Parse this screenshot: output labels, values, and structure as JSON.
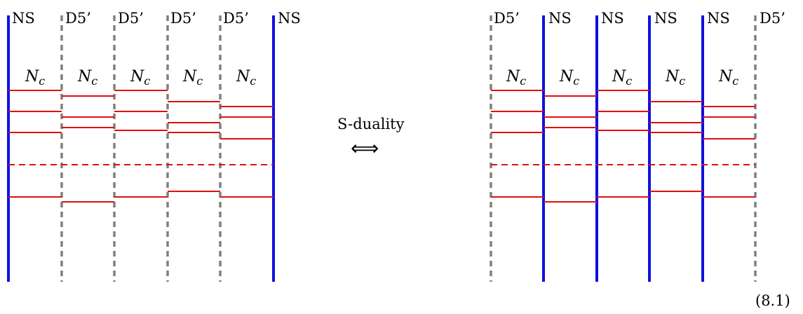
{
  "left_config": {
    "brane_labels": [
      "NS",
      "D5’",
      "D5’",
      "D5’",
      "D5’",
      "NS"
    ],
    "brane_types": [
      "NS",
      "D5",
      "D5",
      "D5",
      "D5",
      "NS"
    ],
    "interval_labels": [
      {
        "main": "N",
        "sub": "c"
      },
      {
        "main": "N",
        "sub": "c"
      },
      {
        "main": "N",
        "sub": "c"
      },
      {
        "main": "N",
        "sub": "c"
      },
      {
        "main": "N",
        "sub": "c"
      }
    ]
  },
  "right_config": {
    "brane_labels": [
      "D5’",
      "NS",
      "NS",
      "NS",
      "NS",
      "D5’"
    ],
    "brane_types": [
      "D5",
      "NS",
      "NS",
      "NS",
      "NS",
      "D5"
    ],
    "interval_labels": [
      {
        "main": "N",
        "sub": "c"
      },
      {
        "main": "N",
        "sub": "c"
      },
      {
        "main": "N",
        "sub": "c"
      },
      {
        "main": "N",
        "sub": "c"
      },
      {
        "main": "N",
        "sub": "c"
      }
    ]
  },
  "duality": {
    "label": "S-duality",
    "arrow": "⟺"
  },
  "equation_number": "(8.1)",
  "colors": {
    "ns_brane": "#1010e0",
    "d5_brane": "#808080",
    "d3_segment": "#e01010"
  }
}
